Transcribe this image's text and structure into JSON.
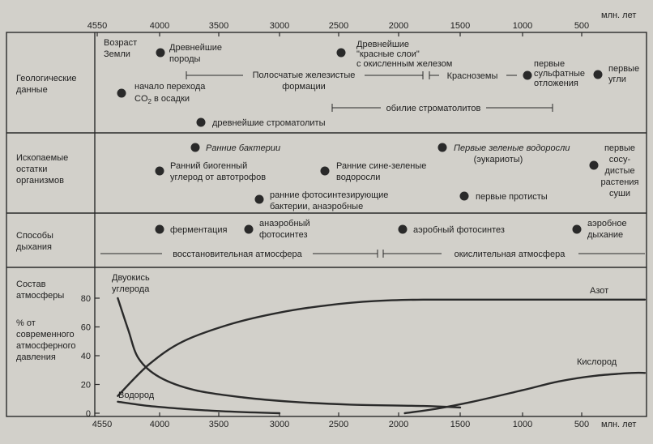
{
  "axis": {
    "unit": "млн. лет",
    "ticks": [
      "4550",
      "4000",
      "3500",
      "3000",
      "2500",
      "2000",
      "1500",
      "1000",
      "500"
    ],
    "y_ticks": [
      "80",
      "60",
      "40",
      "20",
      "0"
    ]
  },
  "rows": {
    "geo": [
      "Геологические",
      "данные"
    ],
    "fossil": [
      "Ископаемые",
      "остатки",
      "организмов"
    ],
    "resp": [
      "Способы",
      "дыхания"
    ],
    "atm": [
      "Состав",
      "атмосферы"
    ],
    "atm_sub": [
      "% от",
      "современного",
      "атмосферного",
      "давления"
    ]
  },
  "geo": {
    "earth_age": [
      "Возраст",
      "Земли"
    ],
    "oldest_rocks": [
      "Древнейшие",
      "породы"
    ],
    "red_beds": [
      "Древнейшие",
      "\"красные слои\"",
      "с окисленным железом"
    ],
    "banded_iron": [
      "Полосчатые железистые",
      "формации"
    ],
    "redsoils": "Красноземы",
    "sulfate": [
      "первые",
      "сульфатные",
      "отложения"
    ],
    "coal": [
      "первые",
      "угли"
    ],
    "co2": [
      "начало перехода",
      "CO",
      "2",
      " в осадки"
    ],
    "stroma_abundance": "обилие строматолитов",
    "oldest_stroma": "древнейшие строматолиты"
  },
  "fossil": {
    "early_bacteria": "Ранние бактерии",
    "early_carbon": [
      "Ранний биогенный",
      "углерод от автотрофов"
    ],
    "blue_green": [
      "Ранние сине-зеленые",
      "водоросли"
    ],
    "green_algae": [
      "Первые зеленые водоросли",
      "(эукариоты)"
    ],
    "vascular": [
      "первые",
      "сосу-",
      "дистые",
      "растения",
      "суши"
    ],
    "photo_bacteria": [
      "ранние фотосинтезирующие",
      "бактерии, анаэробные"
    ],
    "protists": "первые протисты"
  },
  "resp": {
    "fermentation": "ферментация",
    "anaerobic_ps": [
      "анаэробный",
      "фотосинтез"
    ],
    "aerobic_ps": "аэробный фотосинтез",
    "aerobic_resp": [
      "аэробное",
      "дыхание"
    ],
    "reducing": "восстановительная атмосфера",
    "oxidizing": "окислительная атмосфера"
  },
  "atm": {
    "co2_label": [
      "Двуокись",
      "углерода"
    ],
    "nitrogen_label": "Азот",
    "oxygen_label": "Кислород",
    "hydrogen_label": "Водород"
  },
  "chart_data": {
    "type": "line",
    "x_unit": "млн. лет",
    "xlim": [
      4550,
      0
    ],
    "ylim": [
      0,
      80
    ],
    "series": [
      {
        "name": "Азот",
        "x": [
          4400,
          4100,
          3800,
          3400,
          3000,
          2600,
          2200,
          1800,
          1000,
          0
        ],
        "y": [
          12,
          34,
          50,
          62,
          70,
          75,
          78,
          79,
          79,
          79
        ]
      },
      {
        "name": "Двуокись углерода",
        "x": [
          4400,
          4300,
          4200,
          4000,
          3700,
          3300,
          2900,
          2400,
          1800,
          1500
        ],
        "y": [
          80,
          58,
          38,
          25,
          16,
          11,
          8,
          6,
          5,
          4
        ]
      },
      {
        "name": "Кислород",
        "x": [
          1950,
          1700,
          1400,
          1000,
          700,
          400,
          100,
          0
        ],
        "y": [
          0,
          3,
          8,
          16,
          22,
          26,
          28,
          28
        ]
      },
      {
        "name": "Водород",
        "x": [
          4400,
          4100,
          3800,
          3500,
          3200,
          3000
        ],
        "y": [
          8,
          5,
          3,
          1.5,
          0.5,
          0
        ]
      }
    ]
  }
}
